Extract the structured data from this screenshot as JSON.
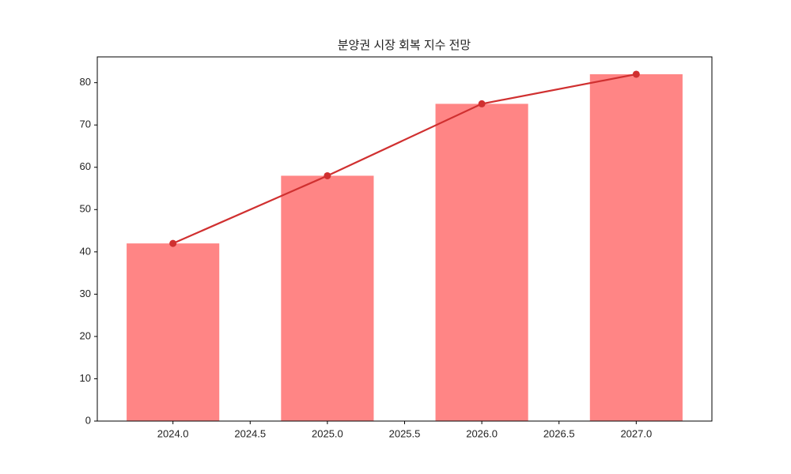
{
  "chart_data": {
    "type": "combo",
    "title": "분양권 시장 회복 지수 전망",
    "x": [
      2024,
      2025,
      2026,
      2027
    ],
    "series": [
      {
        "type": "bar",
        "color": "#ff8585",
        "values": [
          42,
          58,
          75,
          82
        ]
      },
      {
        "type": "line",
        "color": "#d03030",
        "values": [
          42,
          58,
          75,
          82
        ]
      }
    ],
    "xlim": [
      2023.51,
      2027.49
    ],
    "xticks": [
      {
        "value": 2024,
        "label": "2024.0"
      },
      2024.5,
      {
        "value": 2025,
        "label": "2025.0"
      },
      2025.5,
      {
        "value": 2026,
        "label": "2026.0"
      },
      2026.5,
      {
        "value": 2027,
        "label": "2027.0"
      }
    ],
    "ylim": [
      0,
      86.1
    ],
    "yticks": [
      0,
      10,
      20,
      30,
      40,
      50,
      60,
      70,
      80
    ]
  }
}
